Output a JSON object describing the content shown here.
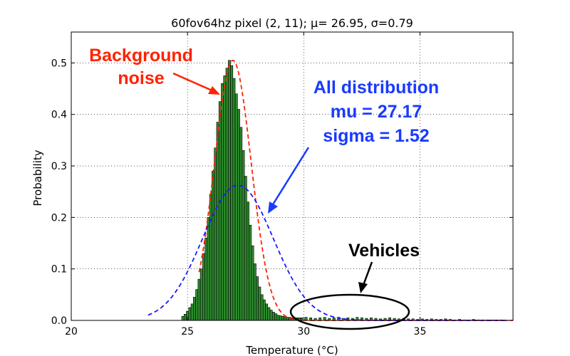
{
  "chart_data": {
    "type": "bar",
    "title": "60fov64hz pixel (2, 11); μ= 26.95, σ=0.79",
    "xlabel": "Temperature (°C)",
    "ylabel": "Probability",
    "xlim": [
      20,
      39
    ],
    "ylim": [
      0,
      0.56
    ],
    "xticks": [
      20,
      25,
      30,
      35
    ],
    "yticks": [
      0.0,
      0.1,
      0.2,
      0.3,
      0.4,
      0.5
    ],
    "xtick_labels": [
      "20",
      "25",
      "30",
      "35"
    ],
    "ytick_labels": [
      "0.0",
      "0.1",
      "0.2",
      "0.3",
      "0.4",
      "0.5"
    ],
    "grid": true,
    "bin_width": 0.1,
    "histogram": {
      "x": [
        24.8,
        24.9,
        25.0,
        25.1,
        25.2,
        25.3,
        25.4,
        25.5,
        25.6,
        25.7,
        25.8,
        25.9,
        26.0,
        26.1,
        26.2,
        26.3,
        26.4,
        26.5,
        26.6,
        26.7,
        26.8,
        26.9,
        27.0,
        27.1,
        27.2,
        27.3,
        27.4,
        27.5,
        27.6,
        27.7,
        27.8,
        27.9,
        28.0,
        28.1,
        28.2,
        28.3,
        28.4,
        28.5,
        28.6,
        28.7,
        28.8,
        28.9,
        29.0,
        29.1,
        29.2,
        29.3,
        29.4,
        29.5,
        29.6,
        29.7,
        29.8,
        29.9
      ],
      "values": [
        0.008,
        0.012,
        0.018,
        0.025,
        0.032,
        0.045,
        0.06,
        0.08,
        0.1,
        0.13,
        0.16,
        0.2,
        0.245,
        0.29,
        0.335,
        0.385,
        0.425,
        0.46,
        0.475,
        0.49,
        0.505,
        0.495,
        0.47,
        0.44,
        0.41,
        0.375,
        0.33,
        0.28,
        0.23,
        0.185,
        0.145,
        0.11,
        0.085,
        0.065,
        0.05,
        0.04,
        0.032,
        0.025,
        0.02,
        0.016,
        0.013,
        0.01,
        0.009,
        0.008,
        0.007,
        0.006,
        0.006,
        0.005,
        0.005,
        0.005,
        0.005,
        0.005
      ]
    },
    "tail": {
      "x": [
        29.9,
        30.1,
        30.3,
        30.5,
        30.7,
        30.9,
        31.1,
        31.3,
        31.5,
        31.7,
        31.9,
        32.1,
        32.3,
        32.5,
        32.7,
        32.9,
        33.1,
        33.3,
        33.5,
        33.7,
        33.9,
        34.1,
        34.3,
        34.5,
        34.7,
        34.9,
        35.1,
        35.3,
        35.5,
        35.7,
        35.9,
        36.1,
        36.3,
        36.5,
        36.7,
        36.9,
        37.1,
        37.3,
        37.5,
        37.7,
        37.9,
        38.1,
        38.3,
        38.5
      ],
      "values": [
        0.004,
        0.006,
        0.005,
        0.004,
        0.005,
        0.006,
        0.004,
        0.005,
        0.006,
        0.004,
        0.005,
        0.004,
        0.006,
        0.005,
        0.004,
        0.005,
        0.004,
        0.003,
        0.004,
        0.005,
        0.004,
        0.003,
        0.004,
        0.003,
        0.003,
        0.002,
        0.003,
        0.002,
        0.003,
        0.002,
        0.002,
        0.003,
        0.002,
        0.001,
        0.002,
        0.001,
        0.001,
        0.002,
        0.001,
        0.001,
        0.001,
        0.001,
        0.001,
        0.001
      ]
    },
    "series": [
      {
        "mu": 26.95,
        "sigma": 0.79,
        "color": "#ff2200",
        "style": "dashed",
        "x_range": [
          25.5,
          39
        ]
      },
      {
        "mu": 27.17,
        "sigma": 1.52,
        "color": "#1a1aff",
        "style": "dashed",
        "x_range": [
          23.3,
          38.8
        ]
      }
    ],
    "colors": {
      "bars": "#2e8b2e",
      "bar_edge": "#000000",
      "background_annotation": "#ff2200",
      "all_annotation": "#1a3aff",
      "vehicles_annotation": "#000000"
    },
    "annotations": {
      "background_line1": "Background",
      "background_line2": "noise",
      "all_line1": "All distribution",
      "all_line2": "mu = 27.17",
      "all_line3": "sigma = 1.52",
      "vehicles": "Vehicles"
    }
  }
}
